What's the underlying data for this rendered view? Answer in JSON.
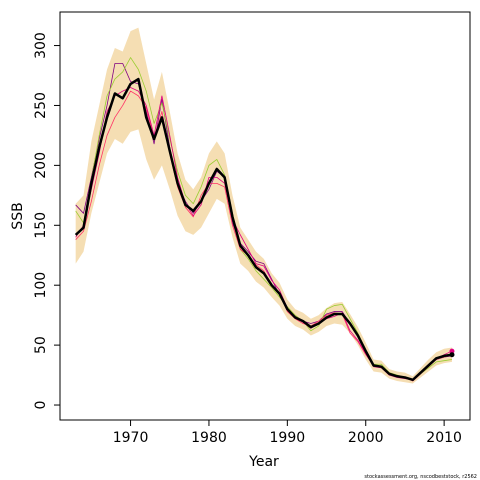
{
  "chart_data": {
    "type": "line",
    "xlabel": "Year",
    "ylabel": "SSB",
    "footer": "stockassessment.org, nscodbeststock, r2562",
    "xlim": [
      1961,
      2013.3
    ],
    "ylim": [
      -12.5,
      328
    ],
    "xticks": [
      1970,
      1980,
      1990,
      2000,
      2010
    ],
    "yticks": [
      0,
      50,
      100,
      150,
      200,
      250,
      300
    ],
    "x": [
      1963,
      1964,
      1965,
      1966,
      1967,
      1968,
      1969,
      1970,
      1971,
      1972,
      1973,
      1974,
      1975,
      1976,
      1977,
      1978,
      1979,
      1980,
      1981,
      1982,
      1983,
      1984,
      1985,
      1986,
      1987,
      1988,
      1989,
      1990,
      1991,
      1992,
      1993,
      1994,
      1995,
      1996,
      1997,
      1998,
      1999,
      2000,
      2001,
      2002,
      2003,
      2004,
      2005,
      2006,
      2007,
      2008,
      2009,
      2010,
      2011
    ],
    "band": {
      "color": "#f5deb3",
      "upper": [
        168,
        175,
        220,
        250,
        280,
        298,
        295,
        312,
        315,
        285,
        255,
        278,
        245,
        210,
        188,
        180,
        190,
        210,
        220,
        210,
        175,
        148,
        138,
        128,
        122,
        110,
        102,
        88,
        80,
        77,
        72,
        75,
        81,
        85,
        86,
        76,
        65,
        52,
        38,
        37,
        30,
        28,
        27,
        24,
        31,
        38,
        44,
        47,
        48
      ],
      "lower": [
        118,
        128,
        160,
        185,
        210,
        222,
        218,
        228,
        230,
        205,
        188,
        200,
        180,
        158,
        145,
        142,
        148,
        160,
        172,
        168,
        140,
        118,
        112,
        103,
        98,
        90,
        83,
        72,
        66,
        63,
        58,
        61,
        66,
        68,
        67,
        60,
        50,
        38,
        28,
        27,
        22,
        20,
        19,
        18,
        23,
        28,
        33,
        35,
        36
      ]
    },
    "series": [
      {
        "color": "#800080",
        "line_width": 0.8,
        "values": [
          167,
          160,
          190,
          222,
          250,
          285,
          285,
          270,
          268,
          245,
          218,
          255,
          215,
          185,
          170,
          160,
          170,
          180,
          195,
          190,
          152,
          135,
          128,
          120,
          118,
          105,
          92,
          79,
          74,
          70,
          68,
          70,
          76,
          78,
          78,
          68,
          57,
          44,
          33,
          32,
          26,
          24,
          23,
          21,
          27,
          33,
          38,
          40,
          41
        ]
      },
      {
        "color": "#9acd32",
        "line_width": 0.8,
        "values": [
          162,
          152,
          188,
          225,
          258,
          272,
          278,
          290,
          280,
          262,
          235,
          252,
          222,
          195,
          175,
          168,
          182,
          200,
          205,
          192,
          160,
          130,
          122,
          112,
          105,
          98,
          90,
          82,
          75,
          70,
          62,
          66,
          80,
          83,
          84,
          72,
          60,
          46,
          34,
          34,
          27,
          25,
          23,
          21,
          26,
          31,
          36,
          37,
          38
        ]
      },
      {
        "color": "#ff3366",
        "line_width": 0.8,
        "values": [
          138,
          145,
          170,
          200,
          225,
          240,
          250,
          262,
          258,
          248,
          222,
          245,
          210,
          182,
          165,
          157,
          175,
          185,
          185,
          182,
          150,
          130,
          125,
          117,
          112,
          100,
          93,
          78,
          72,
          68,
          66,
          70,
          75,
          77,
          76,
          60,
          53,
          42,
          33,
          32,
          25,
          24,
          23,
          20,
          26,
          32,
          38,
          40,
          42
        ]
      },
      {
        "color": "#e0007f",
        "line_width": 0.8,
        "end_point": true,
        "values": [
          140,
          150,
          180,
          210,
          245,
          258,
          262,
          265,
          262,
          250,
          225,
          258,
          225,
          190,
          168,
          158,
          167,
          190,
          190,
          185,
          155,
          142,
          130,
          118,
          116,
          104,
          96,
          81,
          73,
          69,
          64,
          68,
          72,
          74,
          77,
          62,
          54,
          43,
          32,
          31,
          25,
          23,
          22,
          21,
          27,
          33,
          39,
          42,
          45
        ]
      },
      {
        "color": "#000000",
        "line_width": 2.5,
        "end_point": true,
        "values": [
          142,
          148,
          185,
          215,
          240,
          260,
          256,
          268,
          272,
          240,
          222,
          240,
          212,
          185,
          167,
          162,
          170,
          185,
          197,
          190,
          157,
          133,
          125,
          115,
          110,
          100,
          93,
          80,
          73,
          70,
          65,
          68,
          73,
          76,
          76,
          68,
          58,
          45,
          33,
          32,
          26,
          24,
          23,
          21,
          27,
          33,
          39,
          41,
          42
        ]
      }
    ]
  }
}
